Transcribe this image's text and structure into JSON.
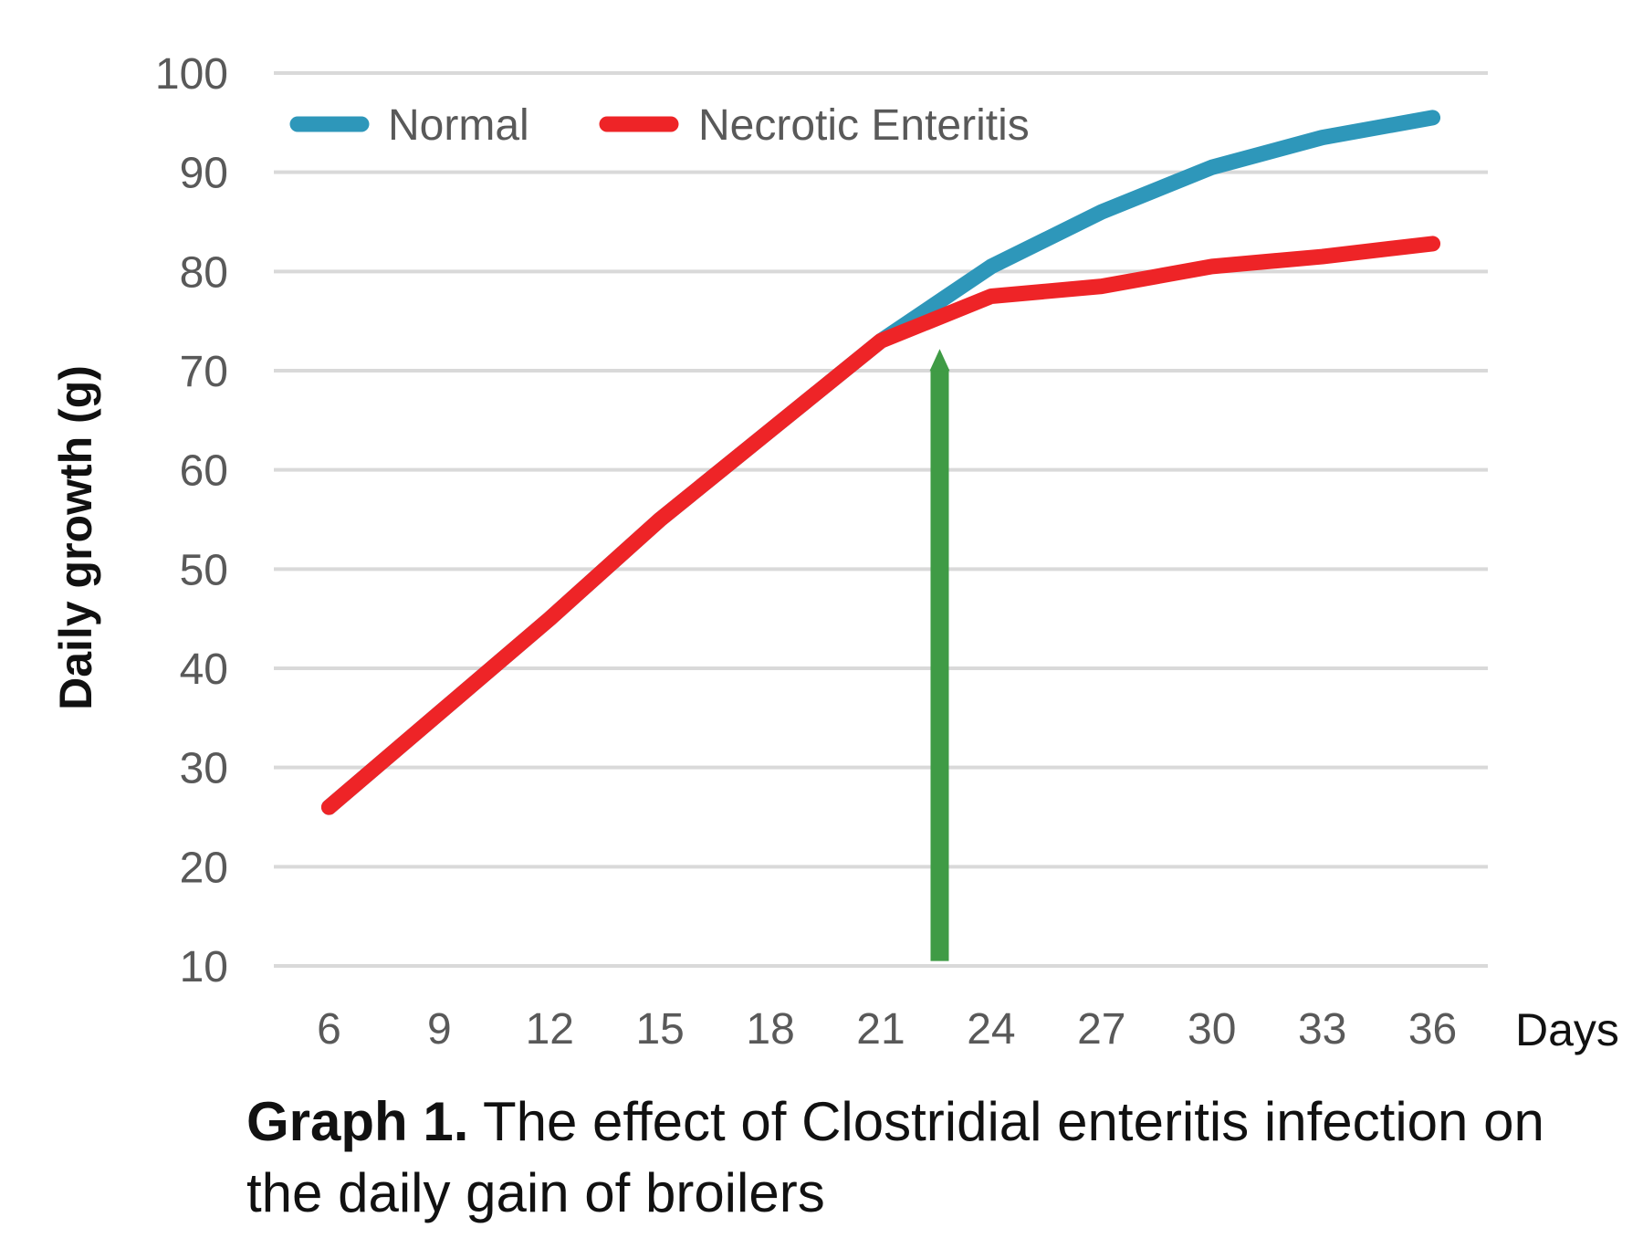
{
  "chart_data": {
    "type": "line",
    "title": "",
    "xlabel": "Days",
    "ylabel": "Daily growth (g)",
    "x": [
      6,
      9,
      12,
      15,
      18,
      21,
      24,
      27,
      30,
      33,
      36
    ],
    "xlim": [
      4.5,
      37.5
    ],
    "ylim": [
      10,
      100
    ],
    "yticks": [
      10,
      20,
      30,
      40,
      50,
      60,
      70,
      80,
      90,
      100
    ],
    "grid": "horizontal",
    "legend": "top-left",
    "series": [
      {
        "name": "Normal",
        "color": "#2E97BA",
        "values": [
          26,
          35.5,
          45,
          55,
          64,
          73,
          80.5,
          86,
          90.5,
          93.5,
          95.5
        ]
      },
      {
        "name": "Necrotic Enteritis",
        "color": "#EE2427",
        "values": [
          26,
          35.5,
          45,
          55,
          64,
          73,
          77.5,
          78.5,
          80.5,
          81.5,
          82.8
        ]
      }
    ],
    "annotation": {
      "type": "arrow",
      "color": "#3F9B45",
      "x": 22.6,
      "from_y": 10.5,
      "to_y": 72
    },
    "colors": {
      "grid": "#D9D9D9",
      "tick_text": "#595959",
      "axis_title": "#111111"
    }
  },
  "caption": {
    "bold": "Graph 1.",
    "text": " The effect of Clostridial enteritis infection on the daily gain of broilers"
  }
}
